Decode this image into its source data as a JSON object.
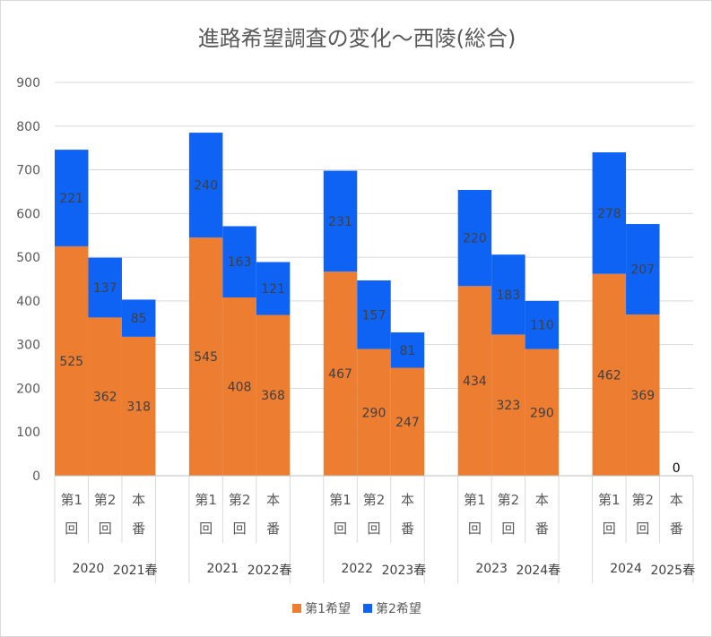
{
  "chart_data": {
    "type": "bar",
    "stacked": true,
    "title": "進路希望調査の変化～西陵(総合)",
    "ylim": [
      0,
      900
    ],
    "yticks": [
      0,
      100,
      200,
      300,
      400,
      500,
      600,
      700,
      800,
      900
    ],
    "grid": true,
    "legend_position": "bottom",
    "groups": [
      {
        "year_label": "2020",
        "season_label": "2021春",
        "bars": [
          {
            "category": "第1回",
            "first": 525,
            "second": 221
          },
          {
            "category": "第2回",
            "first": 362,
            "second": 137
          },
          {
            "category": "本番",
            "first": 318,
            "second": 85
          }
        ]
      },
      {
        "year_label": "2021",
        "season_label": "2022春",
        "bars": [
          {
            "category": "第1回",
            "first": 545,
            "second": 240
          },
          {
            "category": "第2回",
            "first": 408,
            "second": 163
          },
          {
            "category": "本番",
            "first": 368,
            "second": 121
          }
        ]
      },
      {
        "year_label": "2022",
        "season_label": "2023春",
        "bars": [
          {
            "category": "第1回",
            "first": 467,
            "second": 231
          },
          {
            "category": "第2回",
            "first": 290,
            "second": 157
          },
          {
            "category": "本番",
            "first": 247,
            "second": 81
          }
        ]
      },
      {
        "year_label": "2023",
        "season_label": "2024春",
        "bars": [
          {
            "category": "第1回",
            "first": 434,
            "second": 220
          },
          {
            "category": "第2回",
            "first": 323,
            "second": 183
          },
          {
            "category": "本番",
            "first": 290,
            "second": 110
          }
        ]
      },
      {
        "year_label": "2024",
        "season_label": "2025春",
        "bars": [
          {
            "category": "第1回",
            "first": 462,
            "second": 278
          },
          {
            "category": "第2回",
            "first": 369,
            "second": 207
          },
          {
            "category": "本番",
            "first": 0,
            "second": null,
            "label": "0"
          }
        ]
      }
    ],
    "series": [
      {
        "key": "first",
        "name": "第1希望",
        "color": "#ed7d31"
      },
      {
        "key": "second",
        "name": "第2希望",
        "color": "#0e63f4"
      }
    ]
  }
}
